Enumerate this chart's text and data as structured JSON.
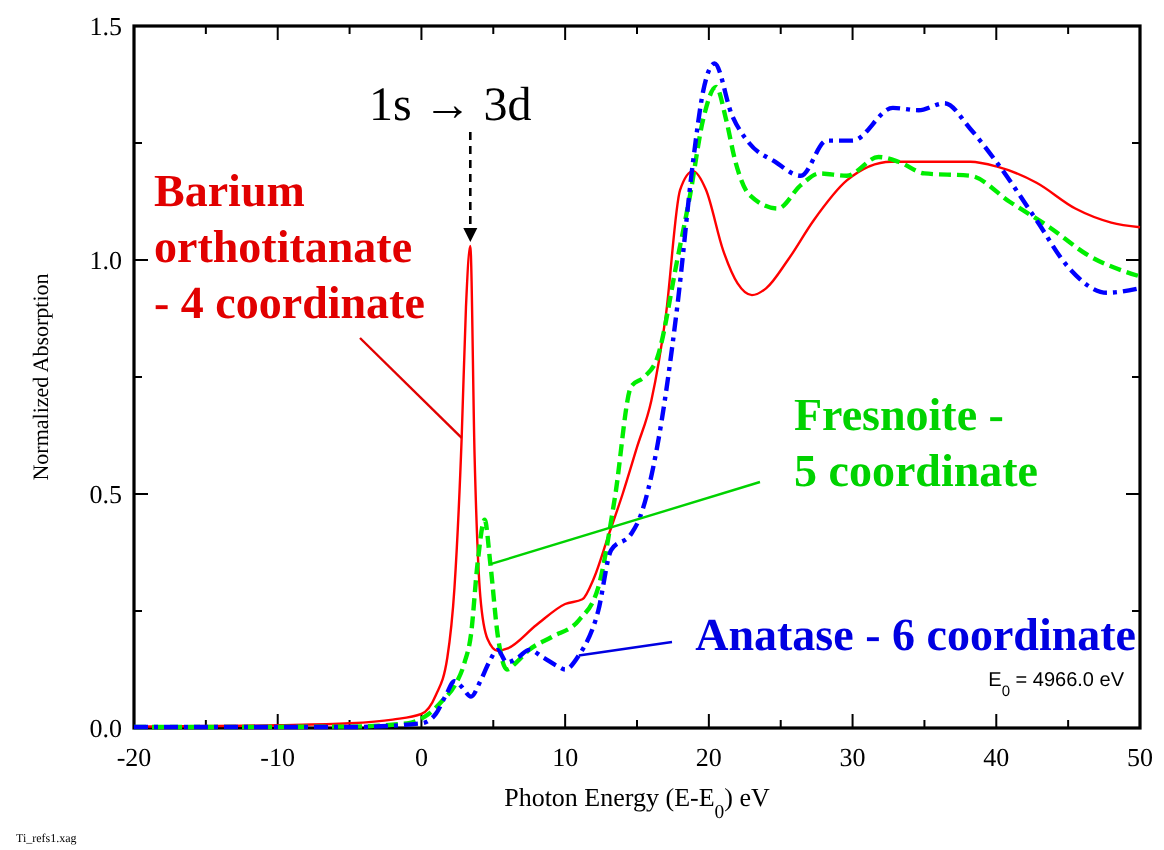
{
  "chart_data": {
    "type": "line",
    "xlabel": "Photon Energy (E-E$_{0}$) eV",
    "ylabel": "Normalized Absorption",
    "xlim": [
      -20,
      50
    ],
    "ylim": [
      0,
      1.5
    ],
    "xticks": [
      -20,
      {
        "value": -15,
        "label": null
      },
      -10,
      {
        "value": -5,
        "label": null
      },
      0,
      {
        "value": 5,
        "label": null
      },
      10,
      {
        "value": 15,
        "label": null
      },
      20,
      {
        "value": 25,
        "label": null
      },
      30,
      {
        "value": 35,
        "label": null
      },
      40,
      {
        "value": 45,
        "label": null
      },
      50
    ],
    "yticks": [
      {
        "value": 0,
        "label": "0.0"
      },
      {
        "value": 0.25,
        "label": null
      },
      {
        "value": 0.5,
        "label": "0.5"
      },
      {
        "value": 0.75,
        "label": null
      },
      {
        "value": 1,
        "label": "1.0"
      },
      {
        "value": 1.25,
        "label": null
      },
      {
        "value": 1.5,
        "label": "1.5"
      }
    ],
    "series": [
      {
        "name": "Barium orthotitanate - 4 coordinate",
        "color": "#ff0000",
        "line_style": "solid",
        "x": [
          -20,
          -10,
          -5,
          -2,
          0,
          1,
          1.8,
          2.3,
          2.8,
          3.1,
          3.4,
          3.7,
          4.1,
          4.6,
          5.3,
          6,
          8,
          10,
          11.2,
          12,
          13,
          14,
          15,
          16,
          17,
          18,
          18.9,
          19.8,
          21,
          22,
          23,
          24,
          25.5,
          27.3,
          29.6,
          32.7,
          38.2,
          40,
          42.8,
          45.5,
          48,
          50
        ],
        "values": [
          0.003,
          0.006,
          0.01,
          0.018,
          0.03,
          0.07,
          0.15,
          0.3,
          0.62,
          0.9,
          1.03,
          0.58,
          0.28,
          0.19,
          0.165,
          0.17,
          0.22,
          0.265,
          0.275,
          0.32,
          0.41,
          0.5,
          0.6,
          0.7,
          0.88,
          1.15,
          1.19,
          1.15,
          1.02,
          0.95,
          0.925,
          0.94,
          1,
          1.085,
          1.17,
          1.21,
          1.21,
          1.2,
          1.165,
          1.11,
          1.08,
          1.07
        ]
      },
      {
        "name": "Fresnoite - 5 coordinate",
        "color": "#00ee00",
        "line_style": "dashed",
        "x": [
          -20,
          -5,
          -1,
          0.5,
          1.5,
          2.3,
          3,
          3.45,
          3.9,
          4.4,
          4.8,
          5.3,
          5.95,
          6.6,
          7.5,
          9.1,
          10.95,
          12.3,
          13.45,
          14.6,
          15.5,
          16.4,
          17.8,
          18.7,
          19.6,
          20.5,
          21.2,
          21.85,
          22.8,
          24.8,
          26.4,
          27.7,
          29.6,
          31.8,
          33.2,
          35,
          38.2,
          40.9,
          43.7,
          46.4,
          50
        ],
        "values": [
          0.002,
          0.003,
          0.01,
          0.03,
          0.06,
          0.09,
          0.14,
          0.2,
          0.35,
          0.445,
          0.35,
          0.2,
          0.125,
          0.14,
          0.167,
          0.195,
          0.23,
          0.3,
          0.49,
          0.73,
          0.75,
          0.79,
          1,
          1.14,
          1.3,
          1.37,
          1.3,
          1.21,
          1.14,
          1.11,
          1.16,
          1.185,
          1.18,
          1.22,
          1.21,
          1.185,
          1.18,
          1.125,
          1.07,
          1.01,
          0.965
        ]
      },
      {
        "name": "Anatase - 6 coordinate",
        "color": "#0000ff",
        "line_style": "dashdot",
        "x": [
          -20,
          -5,
          0,
          1,
          1.7,
          2.3,
          2.8,
          3.45,
          4.1,
          4.7,
          5.3,
          5.95,
          6.7,
          7.5,
          8.5,
          9.6,
          10,
          10.95,
          12.3,
          13.2,
          14.6,
          15.2,
          16.4,
          17.8,
          18.9,
          19.6,
          20.4,
          21.6,
          22.8,
          24.6,
          26.4,
          28.2,
          30,
          32.8,
          34.6,
          36.4,
          38.2,
          40,
          42.8,
          45,
          47.7,
          50
        ],
        "values": [
          0.002,
          0.002,
          0.01,
          0.03,
          0.07,
          0.1,
          0.088,
          0.067,
          0.1,
          0.14,
          0.167,
          0.14,
          0.15,
          0.167,
          0.15,
          0.13,
          0.125,
          0.155,
          0.25,
          0.38,
          0.415,
          0.45,
          0.6,
          0.9,
          1.21,
          1.36,
          1.42,
          1.31,
          1.25,
          1.21,
          1.18,
          1.255,
          1.255,
          1.325,
          1.32,
          1.335,
          1.28,
          1.21,
          1.085,
          0.985,
          0.93,
          0.94
        ]
      }
    ],
    "annotations": [
      {
        "text": "1s → 3d",
        "x": 3.4,
        "y": 1.03
      },
      "E$_{0}$ = 4966.0 eV",
      "Ti_refs1.xag"
    ]
  }
}
